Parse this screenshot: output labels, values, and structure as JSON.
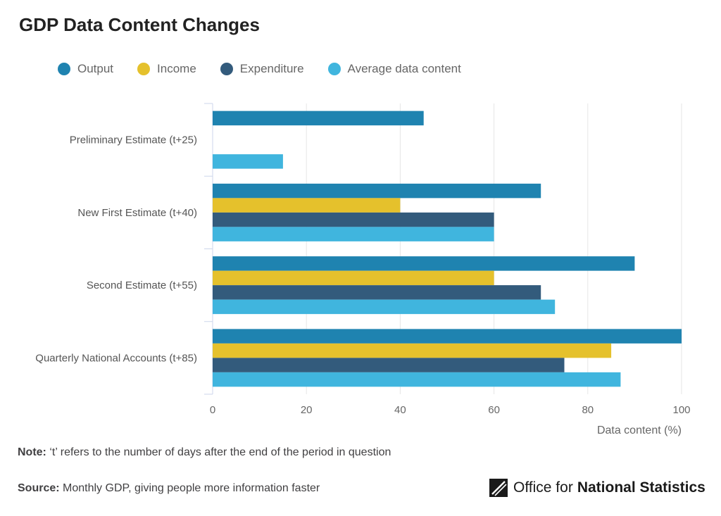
{
  "title": "GDP Data Content Changes",
  "note_label": "Note:",
  "note_text": " ‘t’ refers to the number of days after the end of the period in question",
  "source_label": "Source:",
  "source_text": " Monthly GDP, giving people more information faster",
  "logo": {
    "text_a": "Office for",
    "text_b": "National Statistics"
  },
  "chart_data": {
    "type": "bar",
    "orientation": "horizontal",
    "categories": [
      "Preliminary Estimate (t+25)",
      "New First Estimate (t+40)",
      "Second Estimate (t+55)",
      "Quarterly National Accounts (t+85)"
    ],
    "series": [
      {
        "name": "Output",
        "color": "#1f83b0",
        "values": [
          45,
          70,
          90,
          100
        ]
      },
      {
        "name": "Income",
        "color": "#e5c12c",
        "values": [
          null,
          40,
          60,
          85
        ]
      },
      {
        "name": "Expenditure",
        "color": "#335b7c",
        "values": [
          null,
          60,
          70,
          75
        ]
      },
      {
        "name": "Average data content",
        "color": "#40b5de",
        "values": [
          15,
          60,
          73,
          87
        ]
      }
    ],
    "xlabel": "Data content (%)",
    "xlim": [
      0,
      100
    ],
    "xticks": [
      "0",
      "20",
      "40",
      "60",
      "80",
      "100"
    ],
    "grid": true,
    "legend": "top-left"
  }
}
